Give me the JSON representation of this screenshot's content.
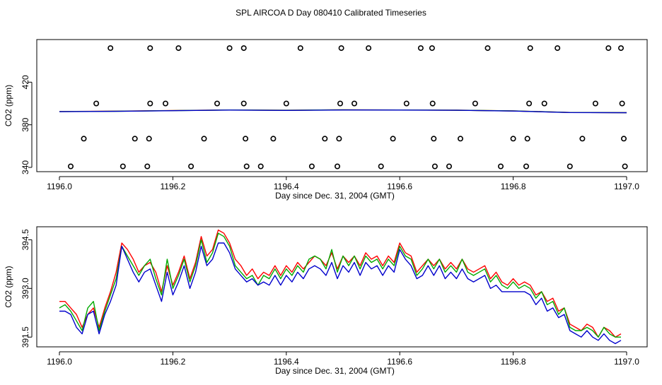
{
  "page_title": "SPL AIRCOA D  Day 080410  Calibrated Timeseries",
  "chart_data": [
    {
      "type": "scatter",
      "title": "",
      "xlabel": "Day since Dec. 31, 2004 (GMT)",
      "ylabel": "CO2 (ppm)",
      "xlim": [
        1196.0,
        1197.0
      ],
      "ylim": [
        336,
        460
      ],
      "xticks": [
        1196.0,
        1196.2,
        1196.4,
        1196.6,
        1196.8,
        1197.0
      ],
      "xtick_labels": [
        "1196.0",
        "1196.2",
        "1196.4",
        "1196.6",
        "1196.8",
        "1197.0"
      ],
      "yticks": [
        340,
        380,
        420
      ],
      "ytick_labels": [
        "340",
        "380",
        "420"
      ],
      "grid": false,
      "legend": "none",
      "marker_color": "#000000",
      "points": [
        [
          1196.09,
          452
        ],
        [
          1196.16,
          452
        ],
        [
          1196.21,
          452
        ],
        [
          1196.3,
          452
        ],
        [
          1196.325,
          452
        ],
        [
          1196.425,
          452
        ],
        [
          1196.497,
          452
        ],
        [
          1196.545,
          452
        ],
        [
          1196.637,
          452
        ],
        [
          1196.657,
          452
        ],
        [
          1196.755,
          452
        ],
        [
          1196.83,
          452
        ],
        [
          1196.878,
          452
        ],
        [
          1196.968,
          452
        ],
        [
          1196.99,
          452
        ],
        [
          1196.065,
          400
        ],
        [
          1196.16,
          400
        ],
        [
          1196.187,
          400
        ],
        [
          1196.278,
          400
        ],
        [
          1196.325,
          400
        ],
        [
          1196.4,
          400
        ],
        [
          1196.495,
          400
        ],
        [
          1196.52,
          400
        ],
        [
          1196.612,
          400
        ],
        [
          1196.658,
          400
        ],
        [
          1196.733,
          400
        ],
        [
          1196.828,
          400
        ],
        [
          1196.855,
          400
        ],
        [
          1196.945,
          400
        ],
        [
          1196.992,
          400
        ],
        [
          1196.043,
          367
        ],
        [
          1196.133,
          367
        ],
        [
          1196.158,
          367
        ],
        [
          1196.255,
          367
        ],
        [
          1196.328,
          367
        ],
        [
          1196.377,
          367
        ],
        [
          1196.468,
          367
        ],
        [
          1196.493,
          367
        ],
        [
          1196.588,
          367
        ],
        [
          1196.66,
          367
        ],
        [
          1196.707,
          367
        ],
        [
          1196.8,
          367
        ],
        [
          1196.825,
          367
        ],
        [
          1196.922,
          367
        ],
        [
          1196.995,
          367
        ],
        [
          1196.02,
          341
        ],
        [
          1196.112,
          341
        ],
        [
          1196.155,
          341
        ],
        [
          1196.232,
          341
        ],
        [
          1196.33,
          341
        ],
        [
          1196.355,
          341
        ],
        [
          1196.445,
          341
        ],
        [
          1196.49,
          341
        ],
        [
          1196.567,
          341
        ],
        [
          1196.662,
          341
        ],
        [
          1196.687,
          341
        ],
        [
          1196.778,
          341
        ],
        [
          1196.823,
          341
        ],
        [
          1196.9,
          341
        ],
        [
          1196.997,
          341
        ]
      ],
      "series": [
        {
          "color": "#ff0000",
          "x": [
            1196.0,
            1196.1,
            1196.2,
            1196.3,
            1196.4,
            1196.5,
            1196.6,
            1196.7,
            1196.8,
            1196.9,
            1197.0
          ],
          "values": [
            392.5,
            392.8,
            393.4,
            393.9,
            393.6,
            394.0,
            393.9,
            393.7,
            393.0,
            391.6,
            391.4
          ]
        },
        {
          "color": "#00aa00",
          "x": [
            1196.0,
            1196.1,
            1196.2,
            1196.3,
            1196.4,
            1196.5,
            1196.6,
            1196.7,
            1196.8,
            1196.9,
            1197.0
          ],
          "values": [
            392.4,
            392.7,
            393.3,
            393.9,
            393.6,
            394.0,
            393.9,
            393.7,
            393.0,
            391.6,
            391.4
          ]
        },
        {
          "color": "#0000cc",
          "x": [
            1196.0,
            1196.1,
            1196.2,
            1196.3,
            1196.4,
            1196.5,
            1196.6,
            1196.7,
            1196.8,
            1196.9,
            1197.0
          ],
          "values": [
            392.3,
            392.6,
            393.2,
            393.8,
            393.5,
            393.9,
            393.8,
            393.6,
            392.9,
            391.5,
            391.3
          ]
        }
      ]
    },
    {
      "type": "line",
      "title": "",
      "xlabel": "Day since Dec. 31, 2004 (GMT)",
      "ylabel": "CO2 (ppm)",
      "xlim": [
        1196.0,
        1197.0
      ],
      "ylim": [
        391.2,
        394.9
      ],
      "xticks": [
        1196.0,
        1196.2,
        1196.4,
        1196.6,
        1196.8,
        1197.0
      ],
      "xtick_labels": [
        "1196.0",
        "1196.2",
        "1196.4",
        "1196.6",
        "1196.8",
        "1197.0"
      ],
      "yticks": [
        391.5,
        393.0,
        394.5
      ],
      "ytick_labels": [
        "391.5",
        "393.0",
        "394.5"
      ],
      "grid": false,
      "legend": "none",
      "series": [
        {
          "color": "#ff0000",
          "x": [
            1196.0,
            1196.01,
            1196.02,
            1196.03,
            1196.04,
            1196.05,
            1196.06,
            1196.07,
            1196.08,
            1196.09,
            1196.1,
            1196.11,
            1196.12,
            1196.13,
            1196.14,
            1196.15,
            1196.16,
            1196.17,
            1196.18,
            1196.19,
            1196.2,
            1196.21,
            1196.22,
            1196.23,
            1196.24,
            1196.25,
            1196.26,
            1196.27,
            1196.28,
            1196.29,
            1196.3,
            1196.31,
            1196.32,
            1196.33,
            1196.34,
            1196.35,
            1196.36,
            1196.37,
            1196.38,
            1196.39,
            1196.4,
            1196.41,
            1196.42,
            1196.43,
            1196.44,
            1196.45,
            1196.46,
            1196.47,
            1196.48,
            1196.49,
            1196.5,
            1196.51,
            1196.52,
            1196.53,
            1196.54,
            1196.55,
            1196.56,
            1196.57,
            1196.58,
            1196.59,
            1196.6,
            1196.61,
            1196.62,
            1196.63,
            1196.64,
            1196.65,
            1196.66,
            1196.67,
            1196.68,
            1196.69,
            1196.7,
            1196.71,
            1196.72,
            1196.73,
            1196.74,
            1196.75,
            1196.76,
            1196.77,
            1196.78,
            1196.79,
            1196.8,
            1196.81,
            1196.82,
            1196.83,
            1196.84,
            1196.85,
            1196.86,
            1196.87,
            1196.88,
            1196.89,
            1196.9,
            1196.91,
            1196.92,
            1196.93,
            1196.94,
            1196.95,
            1196.96,
            1196.97,
            1196.98,
            1196.99
          ],
          "values": [
            392.6,
            392.6,
            392.4,
            392.2,
            391.8,
            392.2,
            392.4,
            391.8,
            392.4,
            392.9,
            393.5,
            394.4,
            394.2,
            393.9,
            393.5,
            393.7,
            393.8,
            393.5,
            392.9,
            393.7,
            393.1,
            393.5,
            394.0,
            393.3,
            393.8,
            394.6,
            394.0,
            394.2,
            394.8,
            394.7,
            394.4,
            393.9,
            393.7,
            393.4,
            393.6,
            393.3,
            393.5,
            393.4,
            393.7,
            393.4,
            393.7,
            393.5,
            393.8,
            393.6,
            393.8,
            394.0,
            393.9,
            393.7,
            394.1,
            393.6,
            394.0,
            393.8,
            394.0,
            393.7,
            394.1,
            393.9,
            394.0,
            393.7,
            394.0,
            393.8,
            394.4,
            394.1,
            394.0,
            393.5,
            393.7,
            393.9,
            393.7,
            393.9,
            393.6,
            393.8,
            393.6,
            393.9,
            393.6,
            393.5,
            393.6,
            393.7,
            393.3,
            393.5,
            393.2,
            393.1,
            393.3,
            393.1,
            393.2,
            393.1,
            392.8,
            392.9,
            392.6,
            392.7,
            392.3,
            392.4,
            391.9,
            391.8,
            391.7,
            391.9,
            391.8,
            391.5,
            391.8,
            391.7,
            391.5,
            391.6
          ]
        },
        {
          "color": "#00aa00",
          "x": [
            1196.0,
            1196.01,
            1196.02,
            1196.03,
            1196.04,
            1196.05,
            1196.06,
            1196.07,
            1196.08,
            1196.09,
            1196.1,
            1196.11,
            1196.12,
            1196.13,
            1196.14,
            1196.15,
            1196.16,
            1196.17,
            1196.18,
            1196.19,
            1196.2,
            1196.21,
            1196.22,
            1196.23,
            1196.24,
            1196.25,
            1196.26,
            1196.27,
            1196.28,
            1196.29,
            1196.3,
            1196.31,
            1196.32,
            1196.33,
            1196.34,
            1196.35,
            1196.36,
            1196.37,
            1196.38,
            1196.39,
            1196.4,
            1196.41,
            1196.42,
            1196.43,
            1196.44,
            1196.45,
            1196.46,
            1196.47,
            1196.48,
            1196.49,
            1196.5,
            1196.51,
            1196.52,
            1196.53,
            1196.54,
            1196.55,
            1196.56,
            1196.57,
            1196.58,
            1196.59,
            1196.6,
            1196.61,
            1196.62,
            1196.63,
            1196.64,
            1196.65,
            1196.66,
            1196.67,
            1196.68,
            1196.69,
            1196.7,
            1196.71,
            1196.72,
            1196.73,
            1196.74,
            1196.75,
            1196.76,
            1196.77,
            1196.78,
            1196.79,
            1196.8,
            1196.81,
            1196.82,
            1196.83,
            1196.84,
            1196.85,
            1196.86,
            1196.87,
            1196.88,
            1196.89,
            1196.9,
            1196.91,
            1196.92,
            1196.93,
            1196.94,
            1196.95,
            1196.96,
            1196.97,
            1196.98,
            1196.99
          ],
          "values": [
            392.4,
            392.5,
            392.3,
            392.0,
            391.7,
            392.4,
            392.6,
            391.7,
            392.3,
            392.8,
            393.3,
            394.3,
            394.0,
            393.7,
            393.4,
            393.7,
            393.9,
            393.3,
            392.8,
            393.9,
            393.0,
            393.4,
            393.9,
            393.2,
            393.7,
            394.5,
            393.8,
            394.1,
            394.7,
            394.6,
            394.3,
            393.7,
            393.5,
            393.3,
            393.4,
            393.1,
            393.4,
            393.3,
            393.6,
            393.3,
            393.6,
            393.4,
            393.7,
            393.5,
            393.9,
            394.0,
            393.9,
            393.6,
            394.2,
            393.5,
            394.0,
            393.7,
            394.0,
            393.6,
            394.0,
            393.8,
            393.9,
            393.6,
            393.9,
            393.7,
            394.3,
            394.0,
            393.9,
            393.4,
            393.6,
            393.9,
            393.6,
            393.9,
            393.5,
            393.7,
            393.5,
            393.9,
            393.5,
            393.4,
            393.5,
            393.6,
            393.2,
            393.4,
            393.1,
            393.0,
            393.2,
            393.0,
            393.1,
            393.0,
            392.7,
            392.9,
            392.5,
            392.6,
            392.2,
            392.4,
            391.8,
            391.7,
            391.7,
            391.8,
            391.7,
            391.5,
            391.8,
            391.6,
            391.5,
            391.5
          ]
        },
        {
          "color": "#0000cc",
          "x": [
            1196.0,
            1196.01,
            1196.02,
            1196.03,
            1196.04,
            1196.05,
            1196.06,
            1196.07,
            1196.08,
            1196.09,
            1196.1,
            1196.11,
            1196.12,
            1196.13,
            1196.14,
            1196.15,
            1196.16,
            1196.17,
            1196.18,
            1196.19,
            1196.2,
            1196.21,
            1196.22,
            1196.23,
            1196.24,
            1196.25,
            1196.26,
            1196.27,
            1196.28,
            1196.29,
            1196.3,
            1196.31,
            1196.32,
            1196.33,
            1196.34,
            1196.35,
            1196.36,
            1196.37,
            1196.38,
            1196.39,
            1196.4,
            1196.41,
            1196.42,
            1196.43,
            1196.44,
            1196.45,
            1196.46,
            1196.47,
            1196.48,
            1196.49,
            1196.5,
            1196.51,
            1196.52,
            1196.53,
            1196.54,
            1196.55,
            1196.56,
            1196.57,
            1196.58,
            1196.59,
            1196.6,
            1196.61,
            1196.62,
            1196.63,
            1196.64,
            1196.65,
            1196.66,
            1196.67,
            1196.68,
            1196.69,
            1196.7,
            1196.71,
            1196.72,
            1196.73,
            1196.74,
            1196.75,
            1196.76,
            1196.77,
            1196.78,
            1196.79,
            1196.8,
            1196.81,
            1196.82,
            1196.83,
            1196.84,
            1196.85,
            1196.86,
            1196.87,
            1196.88,
            1196.89,
            1196.9,
            1196.91,
            1196.92,
            1196.93,
            1196.94,
            1196.95,
            1196.96,
            1196.97,
            1196.98,
            1196.99
          ],
          "values": [
            392.3,
            392.3,
            392.2,
            391.8,
            391.6,
            392.2,
            392.3,
            391.6,
            392.2,
            392.6,
            393.1,
            394.3,
            393.9,
            393.5,
            393.2,
            393.5,
            393.6,
            393.1,
            392.6,
            393.5,
            392.8,
            393.2,
            393.7,
            393.0,
            393.5,
            394.3,
            393.7,
            393.9,
            394.4,
            394.4,
            394.1,
            393.6,
            393.4,
            393.2,
            393.3,
            393.1,
            393.2,
            393.1,
            393.4,
            393.1,
            393.4,
            393.2,
            393.5,
            393.3,
            393.6,
            393.7,
            393.6,
            393.4,
            393.8,
            393.3,
            393.7,
            393.5,
            393.8,
            393.4,
            393.8,
            393.6,
            393.7,
            393.4,
            393.7,
            393.5,
            394.2,
            393.9,
            393.7,
            393.3,
            393.4,
            393.7,
            393.4,
            393.7,
            393.3,
            393.5,
            393.3,
            393.6,
            393.3,
            393.2,
            393.3,
            393.4,
            393.0,
            393.1,
            392.9,
            392.9,
            392.9,
            392.9,
            392.9,
            392.8,
            392.5,
            392.7,
            392.3,
            392.4,
            392.1,
            392.2,
            391.7,
            391.6,
            391.5,
            391.7,
            391.5,
            391.4,
            391.6,
            391.4,
            391.3,
            391.4
          ]
        }
      ]
    }
  ]
}
